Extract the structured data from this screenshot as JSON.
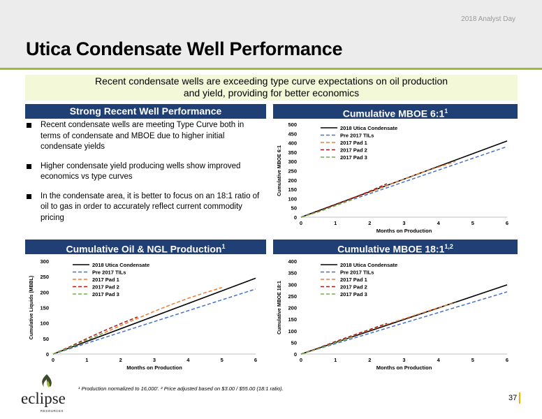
{
  "header": {
    "event": "2018 Analyst Day",
    "title": "Utica Condensate Well Performance",
    "banner_line1": "Recent condensate wells are exceeding type curve expectations on oil production",
    "banner_line2": "and yield, providing for better economics"
  },
  "sections": {
    "left_top": "Strong Recent Well Performance",
    "right_top": "Cumulative MBOE 6:1",
    "right_top_sup": "1",
    "left_bottom": "Cumulative Oil & NGL Production",
    "left_bottom_sup": "1",
    "right_bottom": "Cumulative MBOE 18:1",
    "right_bottom_sup": "1,2"
  },
  "bullets": [
    "Recent condensate wells are meeting Type Curve both in terms of condensate and MBOE due to higher initial condensate yields",
    "Higher condensate yield producing wells show improved economics vs type curves",
    "In the condensate area, it is better to focus on an 18:1 ratio of oil to gas in order to accurately reflect current commodity pricing"
  ],
  "footer": {
    "footnote": "¹ Production normalized to 16,000'. ² Price adjusted based on $3.00 / $55.00 (18:1 ratio).",
    "page": "37",
    "logo_text": "eclipse",
    "logo_sub": "RESOURCES"
  },
  "colors": {
    "navy": "#203f74",
    "green_accent": "#9bbb3b",
    "banner_bg": "#f3f8d8",
    "series_2018": "#000000",
    "series_pre2017": "#4472c4",
    "series_pad1": "#ed7d31",
    "series_pad2": "#9e1b1b",
    "series_pad3": "#70ad47"
  },
  "chart_data": [
    {
      "id": "mboe6",
      "type": "line",
      "xlabel": "Months on Production",
      "ylabel": "Cumulative MBOE 6:1",
      "xlim": [
        0,
        6
      ],
      "ylim": [
        0,
        500
      ],
      "xticks": [
        0,
        1,
        2,
        3,
        4,
        5,
        6
      ],
      "yticks": [
        0,
        50,
        100,
        150,
        200,
        250,
        300,
        350,
        400,
        450,
        500
      ],
      "legend": "top-left",
      "series": [
        {
          "name": "2018 Utica Condensate",
          "style": "solid",
          "color": "#000000",
          "x": [
            0,
            6
          ],
          "y": [
            0,
            410
          ]
        },
        {
          "name": "Pre 2017 TILs",
          "style": "dashed",
          "color": "#4472c4",
          "x": [
            0,
            6
          ],
          "y": [
            0,
            380
          ]
        },
        {
          "name": "2017 Pad 1",
          "style": "dashed",
          "color": "#ed7d31",
          "x": [
            0,
            0.5,
            1,
            1.5,
            2,
            2.5,
            3,
            3.5,
            4,
            4.5
          ],
          "y": [
            0,
            30,
            65,
            100,
            135,
            170,
            205,
            240,
            270,
            300
          ]
        },
        {
          "name": "2017 Pad 2",
          "style": "dashed",
          "color": "#9e1b1b",
          "x": [
            0,
            0.5,
            1,
            1.5,
            2,
            2.5
          ],
          "y": [
            0,
            32,
            68,
            103,
            140,
            180
          ]
        },
        {
          "name": "2017 Pad 3",
          "style": "dashed",
          "color": "#70ad47",
          "x": [
            0,
            0.5,
            1,
            1.5
          ],
          "y": [
            0,
            28,
            62,
            95
          ]
        }
      ]
    },
    {
      "id": "oilngl",
      "type": "line",
      "xlabel": "Months on Production",
      "ylabel": "Cumulative Liquids (MBBL)",
      "xlim": [
        0,
        6
      ],
      "ylim": [
        0,
        300
      ],
      "xticks": [
        0,
        1,
        2,
        3,
        4,
        5,
        6
      ],
      "yticks": [
        0,
        50,
        100,
        150,
        200,
        250,
        300
      ],
      "legend": "top-left",
      "series": [
        {
          "name": "2018 Utica Condensate",
          "style": "solid",
          "color": "#000000",
          "x": [
            0,
            6
          ],
          "y": [
            0,
            245
          ]
        },
        {
          "name": "Pre 2017 TILs",
          "style": "dashed",
          "color": "#4472c4",
          "x": [
            0,
            6
          ],
          "y": [
            0,
            210
          ]
        },
        {
          "name": "2017 Pad 1",
          "style": "dashed",
          "color": "#ed7d31",
          "x": [
            0,
            0.5,
            1,
            1.5,
            2,
            2.5,
            3,
            3.5,
            4,
            4.5,
            5
          ],
          "y": [
            0,
            22,
            45,
            68,
            92,
            115,
            138,
            160,
            180,
            198,
            215
          ]
        },
        {
          "name": "2017 Pad 2",
          "style": "dashed",
          "color": "#9e1b1b",
          "x": [
            0,
            0.5,
            1,
            1.5,
            2,
            2.5
          ],
          "y": [
            0,
            24,
            50,
            75,
            98,
            120
          ]
        },
        {
          "name": "2017 Pad 3",
          "style": "dashed",
          "color": "#70ad47",
          "x": [
            0,
            0.5,
            1,
            1.5
          ],
          "y": [
            0,
            21,
            45,
            68
          ]
        }
      ]
    },
    {
      "id": "mboe18",
      "type": "line",
      "xlabel": "Months on Production",
      "ylabel": "Cumulative MBOE 18:1",
      "xlim": [
        0,
        6
      ],
      "ylim": [
        0,
        400
      ],
      "xticks": [
        0,
        1,
        2,
        3,
        4,
        5,
        6
      ],
      "yticks": [
        0,
        50,
        100,
        150,
        200,
        250,
        300,
        350,
        400
      ],
      "legend": "top-left",
      "series": [
        {
          "name": "2018 Utica Condensate",
          "style": "solid",
          "color": "#000000",
          "x": [
            0,
            6
          ],
          "y": [
            0,
            298
          ]
        },
        {
          "name": "Pre 2017 TILs",
          "style": "dashed",
          "color": "#4472c4",
          "x": [
            0,
            6
          ],
          "y": [
            0,
            268
          ]
        },
        {
          "name": "2017 Pad 1",
          "style": "dashed",
          "color": "#ed7d31",
          "x": [
            0,
            0.5,
            1,
            1.5,
            2,
            2.5,
            3,
            3.5,
            4,
            4.5
          ],
          "y": [
            0,
            25,
            52,
            78,
            103,
            128,
            152,
            176,
            200,
            222
          ]
        },
        {
          "name": "2017 Pad 2",
          "style": "dashed",
          "color": "#9e1b1b",
          "x": [
            0,
            0.5,
            1,
            1.5,
            2,
            2.5
          ],
          "y": [
            0,
            26,
            54,
            80,
            106,
            132
          ]
        },
        {
          "name": "2017 Pad 3",
          "style": "dashed",
          "color": "#70ad47",
          "x": [
            0,
            0.5,
            1,
            1.5
          ],
          "y": [
            0,
            23,
            49,
            73
          ]
        }
      ]
    }
  ]
}
